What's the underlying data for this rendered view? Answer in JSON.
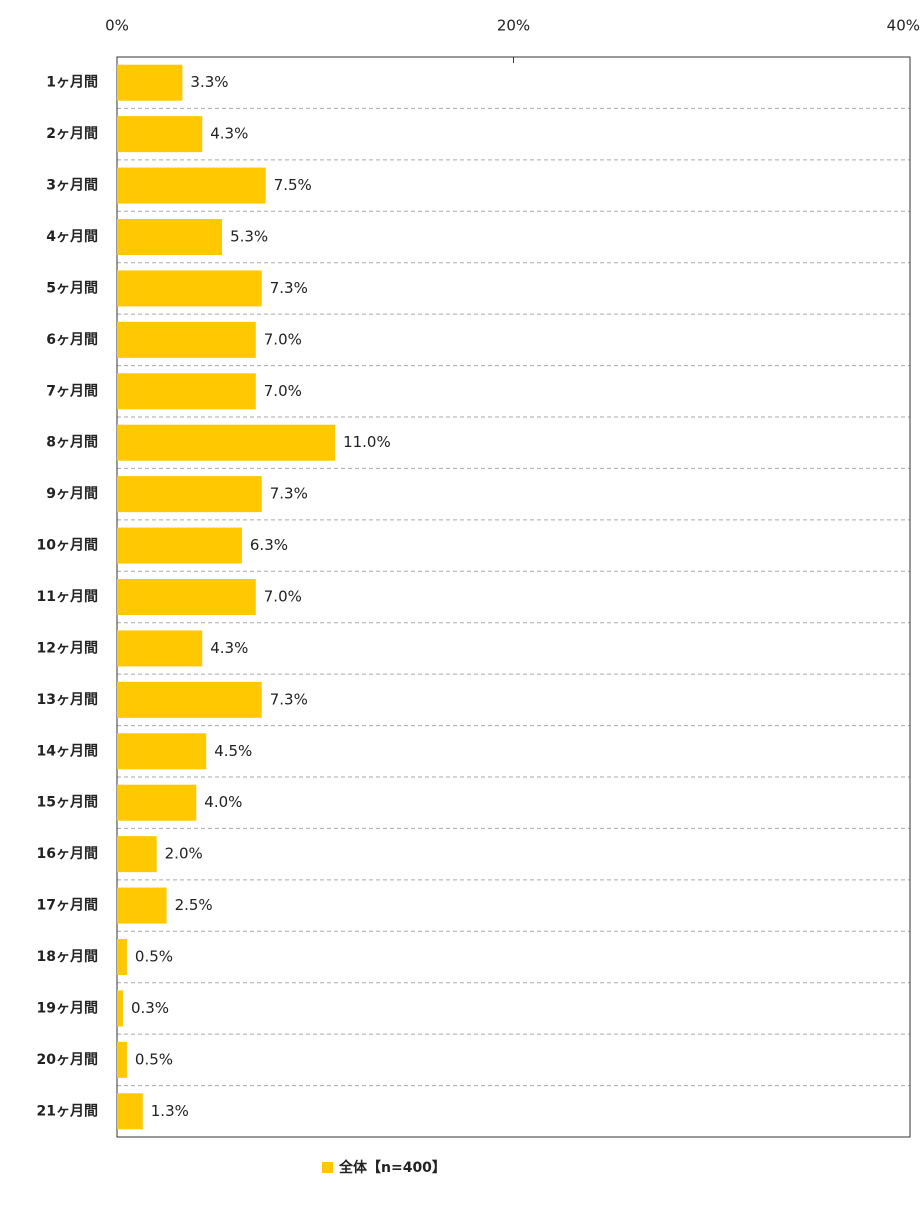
{
  "chart_data": {
    "type": "bar",
    "categories": [
      "1ヶ月間",
      "2ヶ月間",
      "3ヶ月間",
      "4ヶ月間",
      "5ヶ月間",
      "6ヶ月間",
      "7ヶ月間",
      "8ヶ月間",
      "9ヶ月間",
      "10ヶ月間",
      "11ヶ月間",
      "12ヶ月間",
      "13ヶ月間",
      "14ヶ月間",
      "15ヶ月間",
      "16ヶ月間",
      "17ヶ月間",
      "18ヶ月間",
      "19ヶ月間",
      "20ヶ月間",
      "21ヶ月間"
    ],
    "series": [
      {
        "name": "全体【n=400】",
        "color": "#ffc800",
        "values": [
          3.3,
          4.3,
          7.5,
          5.3,
          7.3,
          7.0,
          7.0,
          11.0,
          7.3,
          6.3,
          7.0,
          4.3,
          7.3,
          4.5,
          4.0,
          2.0,
          2.5,
          0.5,
          0.3,
          0.5,
          1.3
        ],
        "value_labels": [
          "3.3%",
          "4.3%",
          "7.5%",
          "5.3%",
          "7.3%",
          "7.0%",
          "7.0%",
          "11.0%",
          "7.3%",
          "6.3%",
          "7.0%",
          "4.3%",
          "7.3%",
          "4.5%",
          "4.0%",
          "2.0%",
          "2.5%",
          "0.5%",
          "0.3%",
          "0.5%",
          "1.3%"
        ]
      }
    ],
    "xlim": [
      0,
      40
    ],
    "xticks": [
      {
        "value": 0,
        "label": "0%"
      },
      {
        "value": 20,
        "label": "20%"
      },
      {
        "value": 40,
        "label": "40%"
      }
    ]
  }
}
